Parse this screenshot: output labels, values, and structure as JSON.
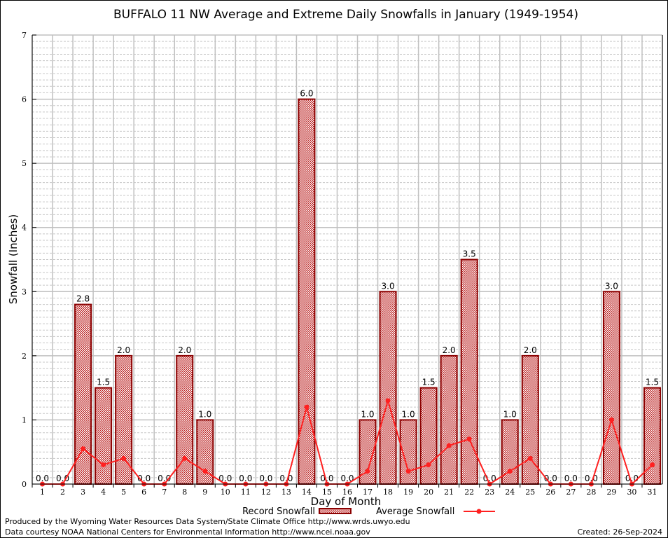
{
  "chart_data": {
    "type": "bar",
    "title": "BUFFALO 11 NW Average and Extreme Daily Snowfalls in January (1949-1954)",
    "xlabel": "Day of Month",
    "ylabel": "Snowfall (Inches)",
    "ylim": [
      0,
      7
    ],
    "yticks": [
      "0",
      "1",
      "2",
      "3",
      "4",
      "5",
      "6",
      "7"
    ],
    "grid": true,
    "categories": [
      "1",
      "2",
      "3",
      "4",
      "5",
      "6",
      "7",
      "8",
      "9",
      "10",
      "11",
      "12",
      "13",
      "14",
      "15",
      "16",
      "17",
      "18",
      "19",
      "20",
      "21",
      "22",
      "23",
      "24",
      "25",
      "26",
      "27",
      "28",
      "29",
      "30",
      "31"
    ],
    "series": [
      {
        "name": "Record Snowfall",
        "type": "bar",
        "color": "#8b0000",
        "values": [
          0,
          0,
          2.8,
          1.5,
          2.0,
          0,
          0,
          2.0,
          1.0,
          0,
          0,
          0,
          0,
          6.0,
          0,
          0,
          1.0,
          3.0,
          1.0,
          1.5,
          2.0,
          3.5,
          0,
          1.0,
          2.0,
          0,
          0,
          0,
          3.0,
          0,
          1.5
        ],
        "labels": [
          "0.0",
          "0.0",
          "2.8",
          "1.5",
          "2.0",
          "0.0",
          "0.0",
          "2.0",
          "1.0",
          "0.0",
          "0.0",
          "0.0",
          "0.0",
          "6.0",
          "0.0",
          "0.0",
          "1.0",
          "3.0",
          "1.0",
          "1.5",
          "2.0",
          "3.5",
          "0.0",
          "1.0",
          "2.0",
          "0.0",
          "0.0",
          "0.0",
          "3.0",
          "0.0",
          "1.5"
        ]
      },
      {
        "name": "Average Snowfall",
        "type": "line",
        "color": "#ff2020",
        "values": [
          0,
          0,
          0.55,
          0.3,
          0.4,
          0,
          0,
          0.4,
          0.2,
          0,
          0,
          0,
          0,
          1.2,
          0,
          0,
          0.2,
          1.3,
          0.2,
          0.3,
          0.6,
          0.7,
          0,
          0.2,
          0.4,
          0,
          0,
          0,
          1.0,
          0,
          0.3
        ]
      }
    ],
    "legend": "bottom-center"
  },
  "footer": {
    "produced": "Produced by the Wyoming Water Resources Data System/State Climate Office http://www.wrds.uwyo.edu",
    "courtesy": "Data courtesy NOAA National Centers for Environmental Information http://www.ncei.noaa.gov",
    "created": "Created: 26-Sep-2024"
  }
}
